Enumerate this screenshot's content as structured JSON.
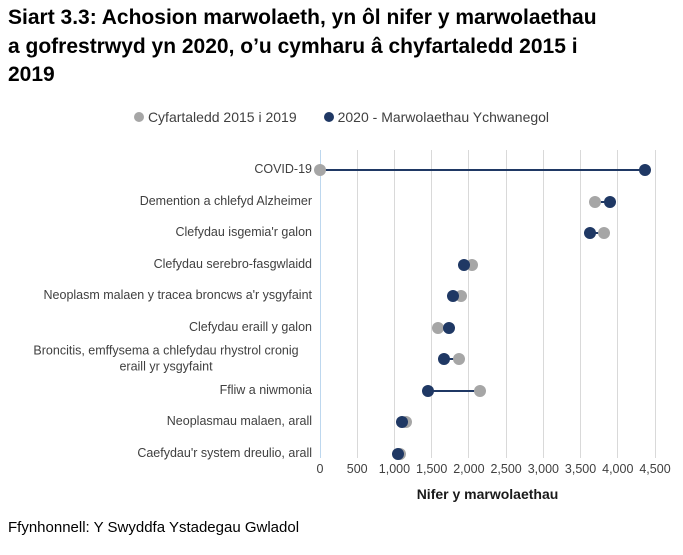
{
  "title": "Siart 3.3: Achosion marwolaeth, yn ôl nifer y marwolaethau a gofrestrwyd yn 2020, o’u cymharu â chyfartaledd 2015 i 2019",
  "source": "Ffynhonnell: Y Swyddfa Ystadegau Gwladol",
  "legend": {
    "items": [
      {
        "label": "Cyfartaledd 2015 i 2019",
        "color": "#a6a6a6"
      },
      {
        "label": "2020 - Marwolaethau Ychwanegol",
        "color": "#1f3864"
      }
    ]
  },
  "colors": {
    "average_series": "#a6a6a6",
    "year2020_series": "#1f3864",
    "gridline": "#d9d9d9",
    "zero_line": "#bdd7ee",
    "axis_text": "#404040"
  },
  "chart_data": {
    "type": "scatter",
    "subtype": "dumbbell",
    "categories": [
      "COVID-19",
      "Demention a chlefyd Alzheimer",
      "Clefydau isgemia'r galon",
      "Clefydau serebro-fasgwlaidd",
      "Neoplasm malaen y tracea broncws a'r ysgyfaint",
      "Clefydau eraill y galon",
      "Broncitis, emffysema a chlefydau rhystrol cronig eraill yr ysgyfaint",
      "Ffliw a niwmonia",
      "Neoplasmau malaen, arall",
      "Caefydau'r system dreulio, arall"
    ],
    "series": [
      {
        "name": "Cyfartaledd 2015 i 2019",
        "color": "#a6a6a6",
        "values": [
          0,
          3700,
          3820,
          2040,
          1890,
          1580,
          1870,
          2150,
          1150,
          1070
        ]
      },
      {
        "name": "2020 - Marwolaethau Ychwanegol",
        "color": "#1f3864",
        "values": [
          4360,
          3900,
          3630,
          1930,
          1780,
          1730,
          1660,
          1450,
          1100,
          1050
        ]
      }
    ],
    "connector_color": "#1f3864",
    "xlabel": "Nifer y marwolaethau",
    "xlim": [
      0,
      4500
    ],
    "xtick_values": [
      0,
      500,
      1000,
      1500,
      2000,
      2500,
      3000,
      3500,
      4000,
      4500
    ],
    "xtick_labels": [
      "0",
      "500",
      "1,000",
      "1,500",
      "2,000",
      "2,500",
      "3,000",
      "3,500",
      "4,000",
      "4,500"
    ],
    "grid": "vertical",
    "legend_position": "top"
  }
}
